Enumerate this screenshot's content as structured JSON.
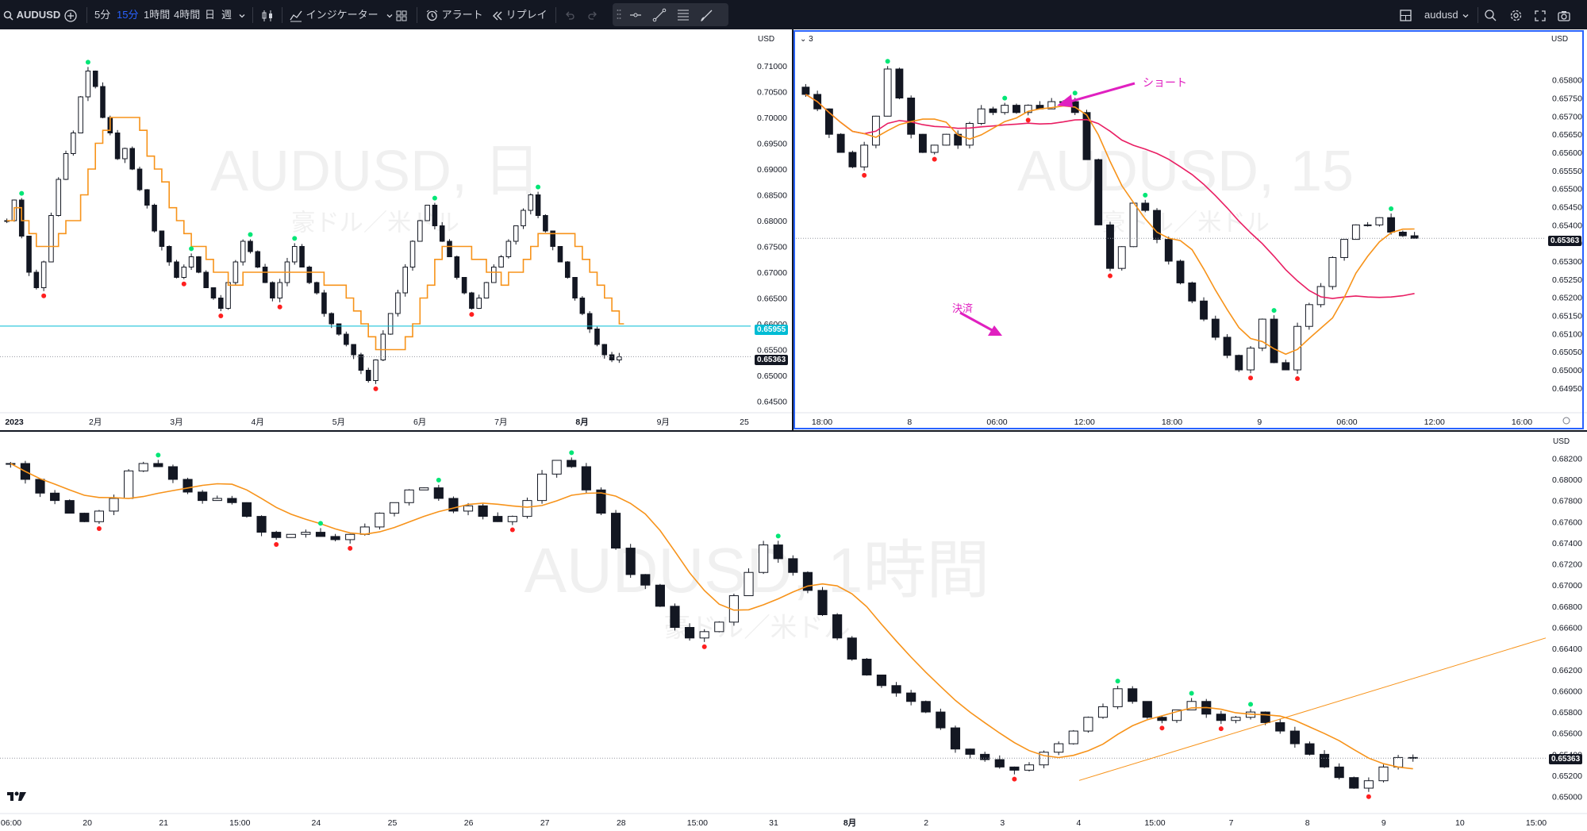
{
  "toolbar": {
    "symbol": "AUDUSD",
    "intervals": [
      "5分",
      "15分",
      "1時間",
      "4時間",
      "日",
      "週"
    ],
    "active_interval": "15分",
    "indicators_label": "インジケーター",
    "alert_label": "アラート",
    "replay_label": "リプレイ",
    "layout_name": "audusd"
  },
  "colors": {
    "bg": "#ffffff",
    "toolbar_bg": "#131722",
    "active_border": "#2962ff",
    "ma_orange": "#f7931a",
    "ma_red": "#e91e63",
    "arrow_magenta": "#e020c0",
    "swing_high": "#00e676",
    "swing_low": "#ff1f1f",
    "hline_cyan": "#00bcd4"
  },
  "chart_data": [
    {
      "type": "candlestick",
      "pane": "daily",
      "watermark": "AUDUSD, 日",
      "watermark_sub": "豪ドル／米ドル",
      "currency": "USD",
      "y_ticks": [
        "0.71000",
        "0.70500",
        "0.70000",
        "0.69500",
        "0.69000",
        "0.68500",
        "0.68000",
        "0.67500",
        "0.67000",
        "0.66500",
        "0.66000",
        "0.65500",
        "0.65000",
        "0.64500"
      ],
      "ylim": [
        0.644,
        0.714
      ],
      "x_ticks": [
        "2023",
        "2月",
        "3月",
        "4月",
        "5月",
        "6月",
        "7月",
        "8月",
        "9月",
        "25"
      ],
      "last_price": "0.65363",
      "hline_price": "0.65955",
      "ma_type": "stepped moving average (orange)",
      "open_price": 0.68,
      "closes": [
        0.68,
        0.684,
        0.677,
        0.67,
        0.667,
        0.672,
        0.681,
        0.688,
        0.693,
        0.697,
        0.704,
        0.709,
        0.706,
        0.7,
        0.697,
        0.692,
        0.694,
        0.69,
        0.686,
        0.683,
        0.678,
        0.675,
        0.672,
        0.669,
        0.671,
        0.673,
        0.67,
        0.667,
        0.665,
        0.663,
        0.668,
        0.672,
        0.676,
        0.674,
        0.671,
        0.668,
        0.665,
        0.668,
        0.672,
        0.675,
        0.671,
        0.668,
        0.666,
        0.662,
        0.66,
        0.658,
        0.656,
        0.654,
        0.651,
        0.649,
        0.653,
        0.658,
        0.662,
        0.666,
        0.671,
        0.676,
        0.68,
        0.683,
        0.679,
        0.676,
        0.673,
        0.669,
        0.666,
        0.663,
        0.665,
        0.668,
        0.671,
        0.673,
        0.676,
        0.679,
        0.682,
        0.685,
        0.681,
        0.678,
        0.675,
        0.672,
        0.669,
        0.665,
        0.662,
        0.659,
        0.656,
        0.654,
        0.653,
        0.6536
      ],
      "swing_highs": [
        0.712,
        0.701,
        0.678,
        0.679,
        0.679,
        0.688,
        0.688,
        0.69,
        0.682
      ],
      "swing_lows": [
        0.6705,
        0.681,
        0.6625,
        0.6618,
        0.657,
        0.6565,
        0.646,
        0.6575,
        0.6575
      ]
    },
    {
      "type": "candlestick",
      "pane": "15min",
      "watermark": "AUDUSD, 15",
      "watermark_sub": "豪ドル／米ドル",
      "legend_badge": "3",
      "currency": "USD",
      "y_ticks": [
        "0.65800",
        "0.65750",
        "0.65700",
        "0.65650",
        "0.65600",
        "0.65550",
        "0.65500",
        "0.65450",
        "0.65400",
        "0.65350",
        "0.65300",
        "0.65250",
        "0.65200",
        "0.65150",
        "0.65100",
        "0.65050",
        "0.65000",
        "0.64950"
      ],
      "ylim": [
        0.6493,
        0.659
      ],
      "x_ticks": [
        "18:00",
        "8",
        "06:00",
        "12:00",
        "18:00",
        "9",
        "06:00",
        "12:00",
        "16:00"
      ],
      "last_price": "0.65363",
      "open_price": 0.6578,
      "closes": [
        0.6576,
        0.6572,
        0.6565,
        0.656,
        0.6556,
        0.6562,
        0.657,
        0.6583,
        0.6575,
        0.6565,
        0.656,
        0.6562,
        0.6565,
        0.6562,
        0.6568,
        0.6572,
        0.6571,
        0.6573,
        0.6571,
        0.6573,
        0.6572,
        0.6574,
        0.6574,
        0.6571,
        0.6558,
        0.654,
        0.6528,
        0.6534,
        0.6546,
        0.6544,
        0.6536,
        0.653,
        0.6524,
        0.6519,
        0.6514,
        0.6509,
        0.6504,
        0.65,
        0.6506,
        0.6514,
        0.6502,
        0.65,
        0.6512,
        0.6518,
        0.6523,
        0.6531,
        0.6536,
        0.654,
        0.654,
        0.6542,
        0.6538,
        0.6537,
        0.65363
      ],
      "annotations": [
        "ショート",
        "決済"
      ],
      "fast_ma": "orange",
      "slow_ma": "crimson"
    },
    {
      "type": "candlestick",
      "pane": "1hour",
      "watermark": "AUDUSD, 1時間",
      "watermark_sub": "豪ドル／米ドル",
      "currency": "USD",
      "y_ticks": [
        "0.68200",
        "0.68000",
        "0.67800",
        "0.67600",
        "0.67400",
        "0.67200",
        "0.67000",
        "0.66800",
        "0.66600",
        "0.66400",
        "0.66200",
        "0.66000",
        "0.65800",
        "0.65600",
        "0.65400",
        "0.65200",
        "0.65000"
      ],
      "ylim": [
        0.6493,
        0.683
      ],
      "x_ticks": [
        "06:00",
        "20",
        "21",
        "15:00",
        "24",
        "25",
        "26",
        "27",
        "28",
        "15:00",
        "31",
        "8月",
        "2",
        "3",
        "4",
        "15:00",
        "7",
        "8",
        "9",
        "10",
        "15:00"
      ],
      "last_price": "0.65363",
      "open_price": 0.6815,
      "closes": [
        0.6815,
        0.68,
        0.6787,
        0.678,
        0.6768,
        0.676,
        0.677,
        0.6782,
        0.6808,
        0.6815,
        0.6812,
        0.68,
        0.6788,
        0.678,
        0.6782,
        0.6778,
        0.6765,
        0.675,
        0.6745,
        0.6748,
        0.675,
        0.6746,
        0.6743,
        0.6748,
        0.6755,
        0.6768,
        0.6778,
        0.679,
        0.6792,
        0.6782,
        0.677,
        0.6775,
        0.6765,
        0.676,
        0.6765,
        0.678,
        0.6805,
        0.6818,
        0.6812,
        0.679,
        0.6768,
        0.6735,
        0.671,
        0.67,
        0.668,
        0.666,
        0.665,
        0.6656,
        0.6665,
        0.669,
        0.6712,
        0.6738,
        0.6725,
        0.6712,
        0.6695,
        0.6672,
        0.665,
        0.663,
        0.6615,
        0.6605,
        0.6598,
        0.659,
        0.658,
        0.6565,
        0.6545,
        0.654,
        0.6535,
        0.6528,
        0.6525,
        0.653,
        0.6542,
        0.655,
        0.6562,
        0.6575,
        0.6585,
        0.6602,
        0.659,
        0.6575,
        0.6572,
        0.6582,
        0.659,
        0.6578,
        0.6572,
        0.6575,
        0.658,
        0.657,
        0.6562,
        0.655,
        0.654,
        0.6528,
        0.6518,
        0.6508,
        0.6515,
        0.6528,
        0.6537,
        0.65363
      ],
      "trendline": "orange ascending line"
    }
  ]
}
